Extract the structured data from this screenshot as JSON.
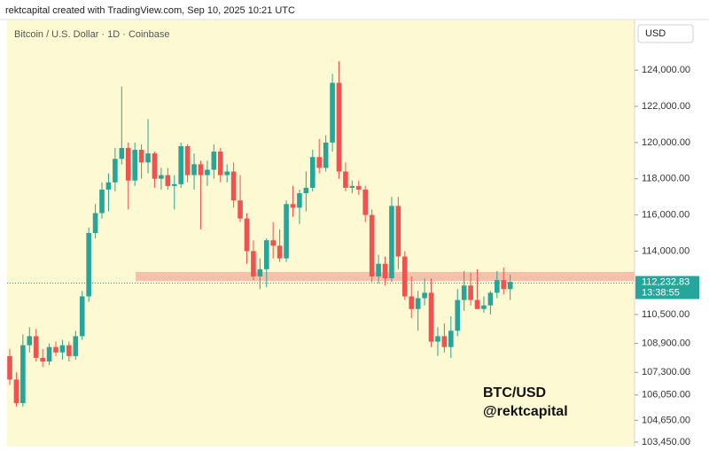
{
  "header": "rektcapital created with TradingView.com, Sep 10, 2025 10:21 UTC",
  "chart_data": {
    "type": "candlestick",
    "subtitle": "Bitcoin / U.S. Dollar · 1D · Coinbase",
    "currency": "USD",
    "annotations": [
      "BTC/USD",
      "@rektcapital"
    ],
    "up_color": "#26a69a",
    "down_color": "#ef5350",
    "ylim": [
      103200,
      126800
    ],
    "yticks": [
      {
        "value": 124000,
        "label": "124,000.00"
      },
      {
        "value": 122000,
        "label": "122,000.00"
      },
      {
        "value": 120000,
        "label": "120,000.00"
      },
      {
        "value": 118000,
        "label": "118,000.00"
      },
      {
        "value": 116000,
        "label": "116,000.00"
      },
      {
        "value": 114000,
        "label": "114,000.00"
      },
      {
        "value": 110500,
        "label": "110,500.00"
      },
      {
        "value": 108900,
        "label": "108,900.00"
      },
      {
        "value": 107300,
        "label": "107,300.00"
      },
      {
        "value": 106050,
        "label": "106,050.00"
      },
      {
        "value": 104650,
        "label": "104,650.00"
      },
      {
        "value": 103450,
        "label": "103,450.00"
      }
    ],
    "last_price": {
      "value": 112232.83,
      "label": "112,232.83"
    },
    "countdown": "13:38:55",
    "zone": {
      "range": [
        112350,
        112850
      ],
      "color": "#f4b6a4"
    },
    "candles": [
      [
        108200,
        108600,
        106600,
        106900
      ],
      [
        106900,
        107300,
        105400,
        105600
      ],
      [
        105600,
        109400,
        105400,
        108800
      ],
      [
        108800,
        109800,
        108400,
        109300
      ],
      [
        109300,
        109700,
        107900,
        108100
      ],
      [
        108100,
        108600,
        107600,
        107900
      ],
      [
        107900,
        108900,
        107700,
        108700
      ],
      [
        108700,
        109000,
        108200,
        108400
      ],
      [
        108400,
        109100,
        108000,
        108800
      ],
      [
        108800,
        109000,
        107900,
        108200
      ],
      [
        108200,
        109600,
        108000,
        109300
      ],
      [
        109300,
        111800,
        109100,
        111500
      ],
      [
        111500,
        115300,
        111200,
        115000
      ],
      [
        115000,
        116600,
        114700,
        116100
      ],
      [
        116100,
        117800,
        115800,
        117400
      ],
      [
        117400,
        118300,
        116200,
        117800
      ],
      [
        117800,
        119700,
        117300,
        119100
      ],
      [
        119100,
        123100,
        118800,
        119700
      ],
      [
        119700,
        120000,
        116300,
        117900
      ],
      [
        117900,
        120000,
        117600,
        119600
      ],
      [
        119600,
        119900,
        118000,
        118900
      ],
      [
        118900,
        121300,
        118300,
        119400
      ],
      [
        119400,
        119500,
        117500,
        118000
      ],
      [
        118000,
        118600,
        117400,
        118200
      ],
      [
        118200,
        118600,
        117400,
        117600
      ],
      [
        117600,
        118200,
        116300,
        117700
      ],
      [
        117700,
        120000,
        117500,
        119800
      ],
      [
        119800,
        119900,
        117800,
        118200
      ],
      [
        118200,
        119400,
        117400,
        118800
      ],
      [
        118800,
        119000,
        115200,
        118200
      ],
      [
        118200,
        119000,
        117600,
        118500
      ],
      [
        118500,
        119900,
        118000,
        119500
      ],
      [
        119500,
        119700,
        117800,
        118200
      ],
      [
        118200,
        118800,
        117800,
        118400
      ],
      [
        118400,
        118900,
        116400,
        116800
      ],
      [
        116800,
        118200,
        115600,
        115800
      ],
      [
        115800,
        116100,
        113300,
        114000
      ],
      [
        114000,
        114600,
        112400,
        112600
      ],
      [
        112600,
        113600,
        111900,
        113000
      ],
      [
        113000,
        114700,
        112000,
        114600
      ],
      [
        114600,
        115600,
        113600,
        114300
      ],
      [
        114300,
        115200,
        113400,
        113600
      ],
      [
        113600,
        116800,
        113400,
        116600
      ],
      [
        116600,
        117600,
        115900,
        116400
      ],
      [
        116400,
        117400,
        115500,
        117200
      ],
      [
        117200,
        118400,
        116200,
        117500
      ],
      [
        117500,
        119600,
        117300,
        119200
      ],
      [
        119200,
        120200,
        118300,
        118600
      ],
      [
        118600,
        120400,
        118400,
        120000
      ],
      [
        120000,
        123800,
        119500,
        123300
      ],
      [
        123300,
        124500,
        118000,
        118400
      ],
      [
        118400,
        118900,
        117300,
        117500
      ],
      [
        117500,
        117900,
        117200,
        117600
      ],
      [
        117600,
        117900,
        117100,
        117400
      ],
      [
        117400,
        117600,
        115600,
        116000
      ],
      [
        116000,
        116300,
        112300,
        112600
      ],
      [
        112600,
        113800,
        112200,
        113300
      ],
      [
        113300,
        113700,
        112100,
        112500
      ],
      [
        112500,
        117000,
        112300,
        116500
      ],
      [
        116500,
        117000,
        113000,
        113700
      ],
      [
        113700,
        114000,
        111300,
        111500
      ],
      [
        111500,
        112600,
        110300,
        110800
      ],
      [
        110800,
        111800,
        109600,
        111400
      ],
      [
        111400,
        112500,
        111000,
        111700
      ],
      [
        111700,
        112500,
        108700,
        109000
      ],
      [
        109000,
        109800,
        108200,
        109300
      ],
      [
        109300,
        110000,
        108400,
        108700
      ],
      [
        108700,
        110400,
        108100,
        109600
      ],
      [
        109600,
        111900,
        109300,
        111300
      ],
      [
        111300,
        112900,
        110700,
        112100
      ],
      [
        112100,
        112800,
        111000,
        111300
      ],
      [
        111300,
        113000,
        110800,
        110800
      ],
      [
        110800,
        111500,
        110600,
        111000
      ],
      [
        111000,
        111800,
        110500,
        111700
      ],
      [
        111700,
        112900,
        111400,
        112400
      ],
      [
        112400,
        113100,
        111600,
        111900
      ],
      [
        111900,
        112700,
        111300,
        112300
      ]
    ]
  }
}
